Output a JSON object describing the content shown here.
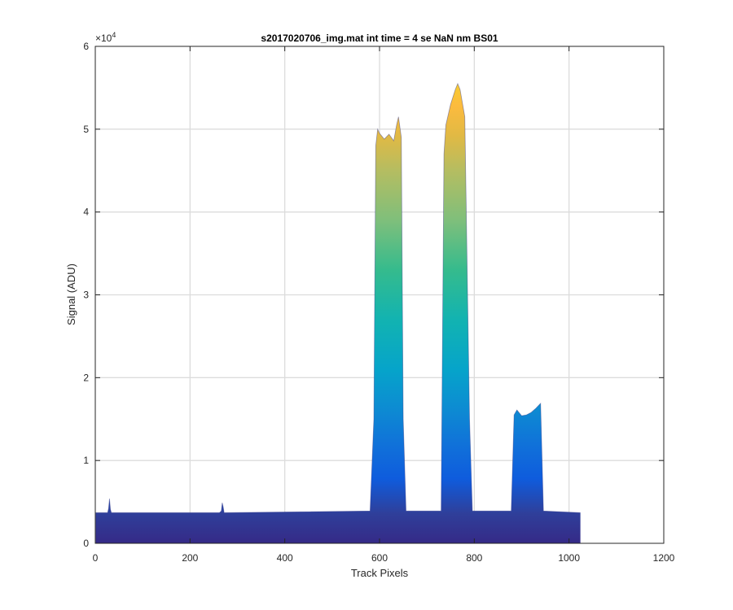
{
  "chart_data": {
    "type": "area",
    "title": "s2017020706_img.mat int time = 4 se  NaN nm BS01",
    "xlabel": "Track Pixels",
    "ylabel": "Signal (ADU)",
    "xlim": [
      0,
      1200
    ],
    "ylim": [
      0,
      60000
    ],
    "x_ticks": [
      "0",
      "200",
      "400",
      "600",
      "800",
      "1000",
      "1200"
    ],
    "y_ticks": [
      "0",
      "1",
      "2",
      "3",
      "4",
      "5",
      "6"
    ],
    "y_exponent": "×10",
    "y_exponent_power": "4",
    "grid": true,
    "colormap": "parula",
    "baseline": 3700,
    "series": [
      {
        "x": [
          1,
          26,
          28,
          30,
          32,
          34,
          262,
          266,
          268,
          270,
          272,
          274,
          580,
          588,
          592,
          596,
          600,
          610,
          620,
          630,
          636,
          640,
          646,
          650,
          656,
          730,
          736,
          740,
          750,
          760,
          765,
          770,
          780,
          790,
          796,
          878,
          884,
          890,
          900,
          910,
          920,
          930,
          940,
          946,
          1024
        ],
        "y": [
          3700,
          3700,
          4200,
          5400,
          4100,
          3700,
          3700,
          3900,
          4900,
          4400,
          3700,
          3700,
          3900,
          15000,
          48000,
          50000,
          49500,
          48800,
          49400,
          48600,
          50500,
          51500,
          49000,
          15000,
          3900,
          3900,
          47000,
          50500,
          53000,
          54800,
          55500,
          54800,
          51500,
          15000,
          3900,
          3900,
          15500,
          16100,
          15400,
          15500,
          15800,
          16300,
          16900,
          3900,
          3700
        ]
      }
    ]
  }
}
